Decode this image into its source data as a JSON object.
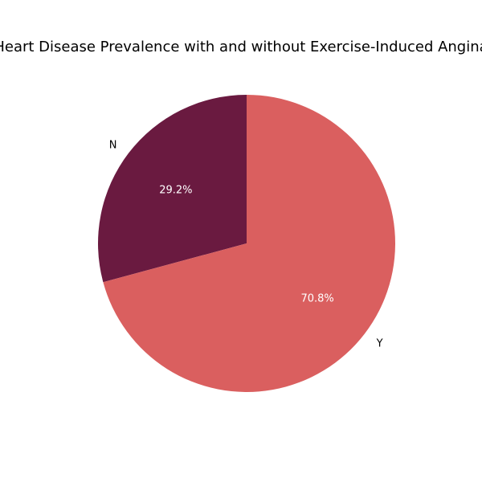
{
  "chart_data": {
    "type": "pie",
    "title": "Heart Disease Prevalence with and without Exercise-Induced Angina",
    "slices": [
      {
        "label": "N",
        "value": 29.2,
        "pct_label": "29.2%",
        "color": "#6a1a40"
      },
      {
        "label": "Y",
        "value": 70.8,
        "pct_label": "70.8%",
        "color": "#da5f5f"
      }
    ],
    "start_angle_deg": 90,
    "direction": "counterclockwise",
    "legend": "none"
  }
}
